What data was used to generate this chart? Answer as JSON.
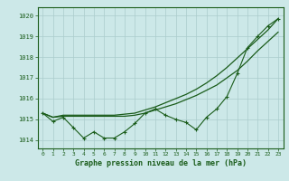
{
  "title": "Graphe pression niveau de la mer (hPa)",
  "bg_color": "#cce8e8",
  "grid_color": "#aacccc",
  "line_color": "#1a5c1a",
  "x": [
    0,
    1,
    2,
    3,
    4,
    5,
    6,
    7,
    8,
    9,
    10,
    11,
    12,
    13,
    14,
    15,
    16,
    17,
    18,
    19,
    20,
    21,
    22,
    23
  ],
  "y_main": [
    1015.3,
    1014.9,
    1015.1,
    1014.6,
    1014.1,
    1014.4,
    1014.1,
    1014.1,
    1014.4,
    1014.8,
    1015.3,
    1015.5,
    1015.2,
    1015.0,
    1014.85,
    1014.5,
    1015.1,
    1015.5,
    1016.1,
    1017.2,
    1018.45,
    1019.0,
    1019.5,
    1019.85
  ],
  "y_upper": [
    1015.3,
    1015.1,
    1015.15,
    1015.15,
    1015.15,
    1015.15,
    1015.15,
    1015.15,
    1015.15,
    1015.2,
    1015.3,
    1015.45,
    1015.6,
    1015.75,
    1015.95,
    1016.15,
    1016.4,
    1016.65,
    1017.0,
    1017.35,
    1017.8,
    1018.3,
    1018.75,
    1019.2
  ],
  "y_top": [
    1015.3,
    1015.1,
    1015.2,
    1015.2,
    1015.2,
    1015.2,
    1015.2,
    1015.2,
    1015.25,
    1015.3,
    1015.45,
    1015.6,
    1015.8,
    1016.0,
    1016.2,
    1016.45,
    1016.75,
    1017.1,
    1017.5,
    1017.95,
    1018.4,
    1018.85,
    1019.3,
    1019.85
  ],
  "ylim": [
    1013.6,
    1020.4
  ],
  "yticks": [
    1014,
    1015,
    1016,
    1017,
    1018,
    1019,
    1020
  ],
  "xlim": [
    -0.5,
    23.5
  ]
}
